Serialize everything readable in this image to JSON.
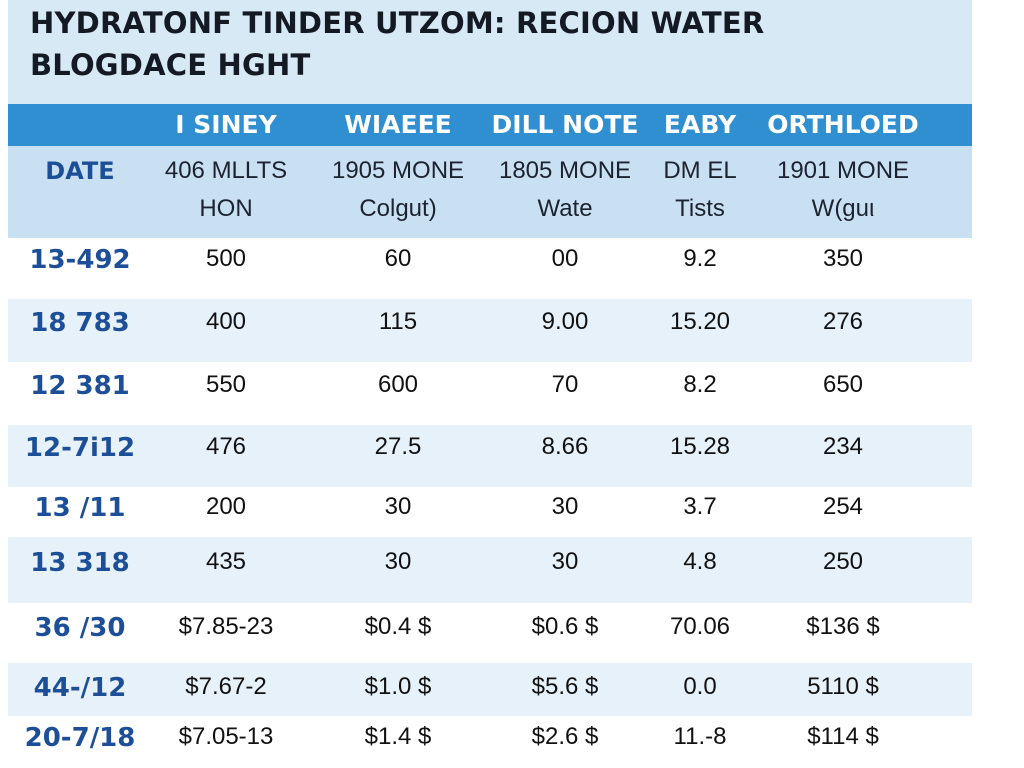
{
  "chart_data": {
    "type": "table",
    "title_lines": [
      "HYDRATONF TINDER UTZOM: RECION WATER",
      "BLOGDACE HGHT"
    ],
    "columns": [
      {
        "header": "",
        "unit_lines": [
          "DATE"
        ]
      },
      {
        "header": "I SINEY",
        "unit_lines": [
          "406 MLLTS",
          "HON"
        ]
      },
      {
        "header": "WIAEEE",
        "unit_lines": [
          "1905 MONE",
          "Colɡut)"
        ]
      },
      {
        "header": "DILL NOTE",
        "unit_lines": [
          "1805 MONE",
          "Wate"
        ]
      },
      {
        "header": "EABY",
        "unit_lines": [
          "DM EL",
          "Tists"
        ]
      },
      {
        "header": "ORTHLOED",
        "unit_lines": [
          "1901 MONE",
          "W(ɡuι"
        ]
      }
    ],
    "rows": [
      [
        "13-492",
        "500",
        "60",
        "00",
        "9.2",
        "350"
      ],
      [
        "18 783",
        "400",
        "115",
        "9.00",
        "15.20",
        "276"
      ],
      [
        "12 381",
        "550",
        "600",
        "70",
        "8.2",
        "650"
      ],
      [
        "12-7ⅰ12",
        "476",
        "27.5",
        "8.66",
        "15.28",
        "234"
      ],
      [
        "13 /11",
        "200",
        "30",
        "30",
        "3.7",
        "254"
      ],
      [
        "13 318",
        "435",
        "30",
        "30",
        "4.8",
        "250"
      ],
      [
        "36 /30",
        "$7.85-23",
        "$0.4 $",
        "$0.6 $",
        "70.06",
        "$136 $"
      ],
      [
        "44-/12",
        "$7.67-2",
        "$1.0 $",
        "$5.6 $",
        "0.0",
        "5110 $"
      ],
      [
        "20-7/18",
        "$7.05-13",
        "$1.4 $",
        "$2.6 $",
        "11.-8",
        "$114 $"
      ]
    ]
  },
  "colors": {
    "title_band": "#d8e9f6",
    "header_bar": "#2f8fd0",
    "sub_header_band": "#c9e0f3",
    "row_alt": "#e6f1fa",
    "date_text": "#1d4f99"
  }
}
